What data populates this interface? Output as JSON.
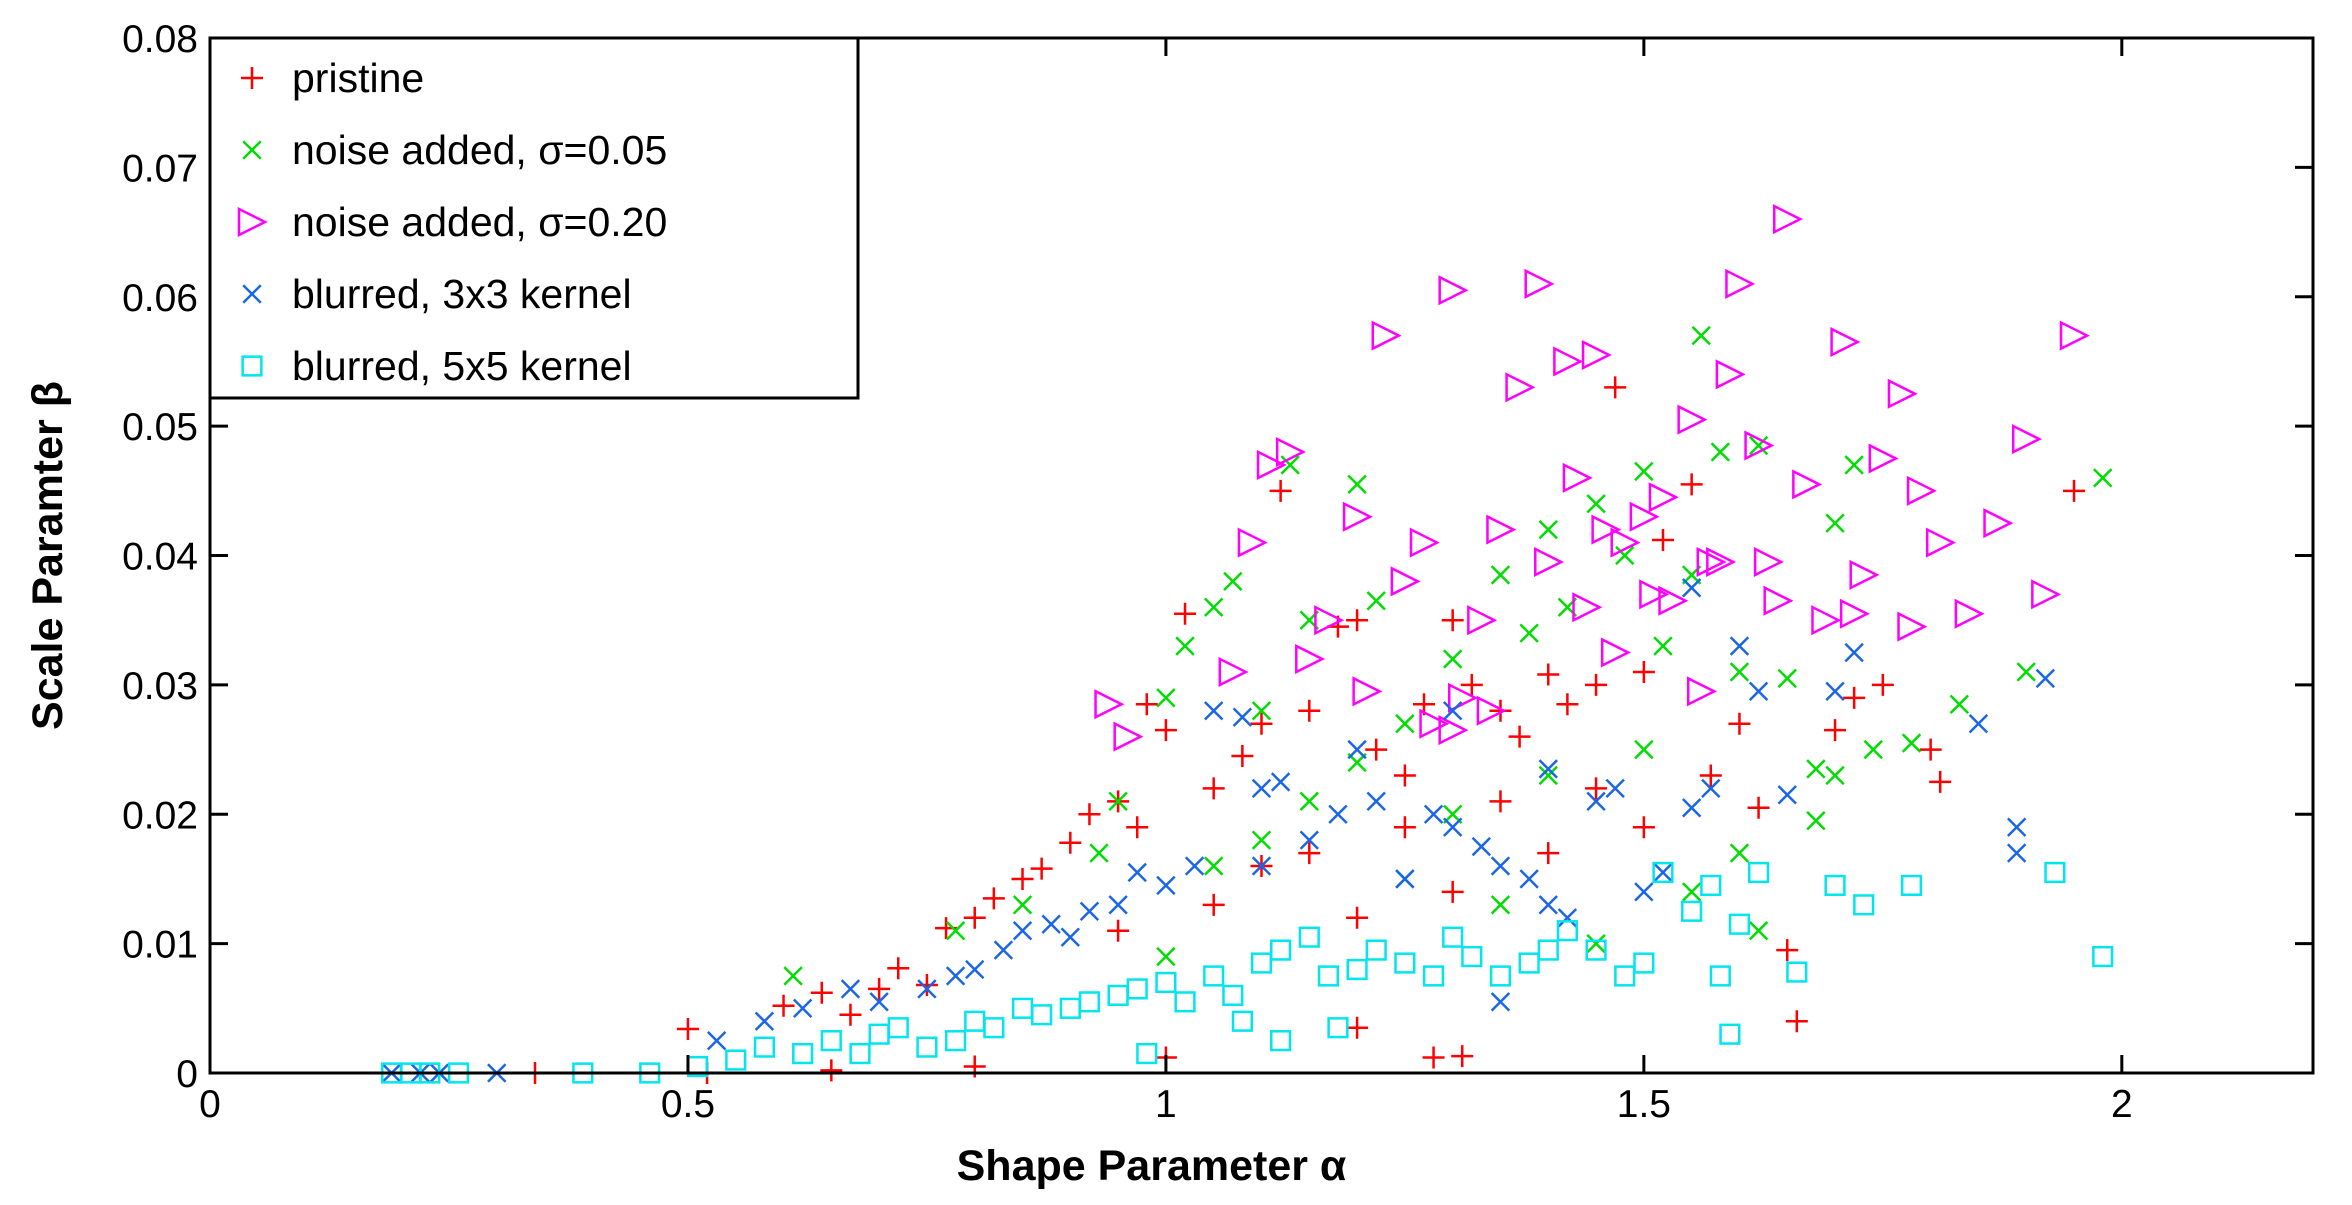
{
  "chart_data": {
    "type": "scatter",
    "title": "",
    "xlabel": "Shape Parameter α",
    "ylabel": "Scale Paramter β",
    "xlim": [
      0,
      2.2
    ],
    "ylim": [
      0,
      0.08
    ],
    "xticks": [
      0,
      0.5,
      1,
      1.5,
      2
    ],
    "xtick_labels": [
      "0",
      "0.5",
      "1",
      "1.5",
      "2"
    ],
    "yticks": [
      0,
      0.01,
      0.02,
      0.03,
      0.04,
      0.05,
      0.06,
      0.07,
      0.08
    ],
    "ytick_labels": [
      "0",
      "0.01",
      "0.02",
      "0.03",
      "0.04",
      "0.05",
      "0.06",
      "0.07",
      "0.08"
    ],
    "grid": false,
    "legend_position": "top-left",
    "series": [
      {
        "name": "pristine",
        "marker": "plus",
        "color": "#ff0000",
        "points": [
          [
            0.34,
            0.0
          ],
          [
            0.5,
            0.0034
          ],
          [
            0.52,
            0.0
          ],
          [
            0.6,
            0.0052
          ],
          [
            0.64,
            0.0062
          ],
          [
            0.67,
            0.0045
          ],
          [
            0.7,
            0.0065
          ],
          [
            0.72,
            0.0081
          ],
          [
            0.75,
            0.0068
          ],
          [
            0.77,
            0.0112
          ],
          [
            0.8,
            0.012
          ],
          [
            0.82,
            0.0135
          ],
          [
            0.85,
            0.015
          ],
          [
            0.87,
            0.0158
          ],
          [
            0.9,
            0.0178
          ],
          [
            0.92,
            0.02
          ],
          [
            0.95,
            0.021
          ],
          [
            0.97,
            0.019
          ],
          [
            0.98,
            0.0285
          ],
          [
            1.0,
            0.0265
          ],
          [
            1.02,
            0.0355
          ],
          [
            1.05,
            0.022
          ],
          [
            1.08,
            0.0245
          ],
          [
            1.1,
            0.027
          ],
          [
            1.12,
            0.045
          ],
          [
            1.15,
            0.028
          ],
          [
            1.18,
            0.0345
          ],
          [
            1.2,
            0.035
          ],
          [
            1.22,
            0.025
          ],
          [
            1.25,
            0.023
          ],
          [
            1.27,
            0.0285
          ],
          [
            1.3,
            0.035
          ],
          [
            1.32,
            0.03
          ],
          [
            1.35,
            0.028
          ],
          [
            1.37,
            0.026
          ],
          [
            1.4,
            0.0308
          ],
          [
            1.42,
            0.0285
          ],
          [
            1.45,
            0.03
          ],
          [
            1.47,
            0.053
          ],
          [
            1.5,
            0.031
          ],
          [
            1.52,
            0.0412
          ],
          [
            1.55,
            0.0455
          ],
          [
            1.57,
            0.023
          ],
          [
            1.6,
            0.027
          ],
          [
            1.62,
            0.0205
          ],
          [
            1.65,
            0.0095
          ],
          [
            1.66,
            0.004
          ],
          [
            1.7,
            0.0265
          ],
          [
            1.72,
            0.029
          ],
          [
            1.75,
            0.03
          ],
          [
            1.8,
            0.025
          ],
          [
            1.81,
            0.0225
          ],
          [
            1.95,
            0.045
          ],
          [
            1.2,
            0.0035
          ],
          [
            1.28,
            0.0012
          ],
          [
            1.31,
            0.0013
          ],
          [
            1.0,
            0.0012
          ],
          [
            0.8,
            0.0005
          ],
          [
            0.65,
            0.0002
          ],
          [
            1.1,
            0.016
          ],
          [
            1.15,
            0.017
          ],
          [
            1.25,
            0.019
          ],
          [
            1.35,
            0.021
          ],
          [
            1.45,
            0.022
          ],
          [
            1.4,
            0.017
          ],
          [
            1.3,
            0.014
          ],
          [
            1.2,
            0.012
          ],
          [
            1.05,
            0.013
          ],
          [
            0.95,
            0.011
          ],
          [
            1.5,
            0.019
          ]
        ]
      },
      {
        "name": "noise added, σ=0.05",
        "marker": "x",
        "color": "#00dd00",
        "points": [
          [
            0.61,
            0.0075
          ],
          [
            0.78,
            0.011
          ],
          [
            0.85,
            0.013
          ],
          [
            0.93,
            0.017
          ],
          [
            0.95,
            0.021
          ],
          [
            1.0,
            0.029
          ],
          [
            1.02,
            0.033
          ],
          [
            1.05,
            0.036
          ],
          [
            1.07,
            0.038
          ],
          [
            1.1,
            0.028
          ],
          [
            1.13,
            0.047
          ],
          [
            1.15,
            0.035
          ],
          [
            1.2,
            0.0455
          ],
          [
            1.22,
            0.0365
          ],
          [
            1.25,
            0.027
          ],
          [
            1.3,
            0.032
          ],
          [
            1.35,
            0.0385
          ],
          [
            1.38,
            0.034
          ],
          [
            1.4,
            0.042
          ],
          [
            1.42,
            0.036
          ],
          [
            1.45,
            0.044
          ],
          [
            1.48,
            0.04
          ],
          [
            1.5,
            0.0465
          ],
          [
            1.52,
            0.033
          ],
          [
            1.55,
            0.0385
          ],
          [
            1.56,
            0.057
          ],
          [
            1.58,
            0.048
          ],
          [
            1.6,
            0.031
          ],
          [
            1.62,
            0.0485
          ],
          [
            1.65,
            0.0305
          ],
          [
            1.68,
            0.0235
          ],
          [
            1.7,
            0.0425
          ],
          [
            1.72,
            0.047
          ],
          [
            1.74,
            0.025
          ],
          [
            1.78,
            0.0255
          ],
          [
            1.83,
            0.0285
          ],
          [
            1.9,
            0.031
          ],
          [
            1.98,
            0.046
          ],
          [
            1.15,
            0.021
          ],
          [
            1.25,
            0.015
          ],
          [
            1.35,
            0.013
          ],
          [
            1.45,
            0.01
          ],
          [
            1.55,
            0.014
          ],
          [
            1.62,
            0.011
          ],
          [
            1.0,
            0.009
          ],
          [
            1.1,
            0.018
          ],
          [
            1.3,
            0.02
          ],
          [
            1.4,
            0.023
          ],
          [
            1.5,
            0.025
          ],
          [
            1.2,
            0.024
          ],
          [
            1.05,
            0.016
          ],
          [
            1.6,
            0.017
          ],
          [
            1.68,
            0.0195
          ],
          [
            1.7,
            0.023
          ]
        ]
      },
      {
        "name": "noise added, σ=0.20",
        "marker": "triangle-right",
        "color": "#ff00ff",
        "points": [
          [
            0.94,
            0.0285
          ],
          [
            0.96,
            0.026
          ],
          [
            1.07,
            0.031
          ],
          [
            1.09,
            0.041
          ],
          [
            1.11,
            0.047
          ],
          [
            1.13,
            0.048
          ],
          [
            1.15,
            0.032
          ],
          [
            1.17,
            0.035
          ],
          [
            1.2,
            0.043
          ],
          [
            1.21,
            0.0295
          ],
          [
            1.23,
            0.057
          ],
          [
            1.25,
            0.038
          ],
          [
            1.27,
            0.041
          ],
          [
            1.3,
            0.0605
          ],
          [
            1.31,
            0.029
          ],
          [
            1.33,
            0.035
          ],
          [
            1.35,
            0.042
          ],
          [
            1.37,
            0.053
          ],
          [
            1.39,
            0.061
          ],
          [
            1.4,
            0.0395
          ],
          [
            1.42,
            0.055
          ],
          [
            1.43,
            0.046
          ],
          [
            1.45,
            0.0555
          ],
          [
            1.47,
            0.0325
          ],
          [
            1.48,
            0.041
          ],
          [
            1.5,
            0.043
          ],
          [
            1.51,
            0.037
          ],
          [
            1.53,
            0.0365
          ],
          [
            1.55,
            0.0505
          ],
          [
            1.57,
            0.0395
          ],
          [
            1.59,
            0.054
          ],
          [
            1.6,
            0.061
          ],
          [
            1.62,
            0.0485
          ],
          [
            1.63,
            0.0395
          ],
          [
            1.65,
            0.066
          ],
          [
            1.67,
            0.0455
          ],
          [
            1.69,
            0.035
          ],
          [
            1.71,
            0.0565
          ],
          [
            1.73,
            0.0385
          ],
          [
            1.75,
            0.0475
          ],
          [
            1.77,
            0.0525
          ],
          [
            1.79,
            0.045
          ],
          [
            1.81,
            0.041
          ],
          [
            1.84,
            0.0355
          ],
          [
            1.87,
            0.0425
          ],
          [
            1.9,
            0.049
          ],
          [
            1.92,
            0.037
          ],
          [
            1.95,
            0.057
          ],
          [
            1.28,
            0.027
          ],
          [
            1.34,
            0.028
          ],
          [
            1.44,
            0.036
          ],
          [
            1.52,
            0.0445
          ],
          [
            1.58,
            0.0395
          ],
          [
            1.64,
            0.0365
          ],
          [
            1.72,
            0.0355
          ],
          [
            1.78,
            0.0345
          ],
          [
            1.3,
            0.0265
          ],
          [
            1.46,
            0.042
          ],
          [
            1.56,
            0.0295
          ]
        ]
      },
      {
        "name": "blurred, 3x3 kernel",
        "marker": "x",
        "color": "#1a66e6",
        "points": [
          [
            0.19,
            0.0
          ],
          [
            0.22,
            0.0
          ],
          [
            0.24,
            0.0
          ],
          [
            0.3,
            0.0
          ],
          [
            0.53,
            0.0025
          ],
          [
            0.58,
            0.004
          ],
          [
            0.62,
            0.005
          ],
          [
            0.67,
            0.0065
          ],
          [
            0.7,
            0.0055
          ],
          [
            0.75,
            0.0065
          ],
          [
            0.78,
            0.0075
          ],
          [
            0.8,
            0.008
          ],
          [
            0.83,
            0.0095
          ],
          [
            0.85,
            0.011
          ],
          [
            0.88,
            0.0115
          ],
          [
            0.9,
            0.0105
          ],
          [
            0.92,
            0.0125
          ],
          [
            0.95,
            0.013
          ],
          [
            0.97,
            0.0155
          ],
          [
            1.0,
            0.0145
          ],
          [
            1.03,
            0.016
          ],
          [
            1.05,
            0.028
          ],
          [
            1.08,
            0.0275
          ],
          [
            1.1,
            0.022
          ],
          [
            1.12,
            0.0225
          ],
          [
            1.15,
            0.018
          ],
          [
            1.18,
            0.02
          ],
          [
            1.2,
            0.025
          ],
          [
            1.22,
            0.021
          ],
          [
            1.25,
            0.015
          ],
          [
            1.28,
            0.02
          ],
          [
            1.3,
            0.019
          ],
          [
            1.33,
            0.0175
          ],
          [
            1.35,
            0.016
          ],
          [
            1.38,
            0.015
          ],
          [
            1.4,
            0.013
          ],
          [
            1.42,
            0.012
          ],
          [
            1.45,
            0.021
          ],
          [
            1.47,
            0.022
          ],
          [
            1.5,
            0.014
          ],
          [
            1.52,
            0.0155
          ],
          [
            1.55,
            0.0205
          ],
          [
            1.57,
            0.022
          ],
          [
            1.6,
            0.033
          ],
          [
            1.62,
            0.0295
          ],
          [
            1.65,
            0.0215
          ],
          [
            1.7,
            0.0295
          ],
          [
            1.72,
            0.0325
          ],
          [
            1.85,
            0.027
          ],
          [
            1.89,
            0.019
          ],
          [
            1.89,
            0.017
          ],
          [
            1.92,
            0.0305
          ],
          [
            1.55,
            0.0375
          ],
          [
            1.4,
            0.0235
          ],
          [
            1.3,
            0.028
          ],
          [
            1.35,
            0.0055
          ],
          [
            1.1,
            0.016
          ]
        ]
      },
      {
        "name": "blurred, 5x5 kernel",
        "marker": "square",
        "color": "#00e5ee",
        "points": [
          [
            0.19,
            0.0
          ],
          [
            0.21,
            0.0
          ],
          [
            0.23,
            0.0
          ],
          [
            0.26,
            0.0
          ],
          [
            0.39,
            0.0
          ],
          [
            0.46,
            0.0
          ],
          [
            0.51,
            0.0005
          ],
          [
            0.55,
            0.001
          ],
          [
            0.58,
            0.002
          ],
          [
            0.62,
            0.0015
          ],
          [
            0.65,
            0.0025
          ],
          [
            0.68,
            0.0015
          ],
          [
            0.7,
            0.003
          ],
          [
            0.72,
            0.0035
          ],
          [
            0.75,
            0.002
          ],
          [
            0.78,
            0.0025
          ],
          [
            0.8,
            0.004
          ],
          [
            0.82,
            0.0035
          ],
          [
            0.85,
            0.005
          ],
          [
            0.87,
            0.0045
          ],
          [
            0.9,
            0.005
          ],
          [
            0.92,
            0.0055
          ],
          [
            0.95,
            0.006
          ],
          [
            0.97,
            0.0065
          ],
          [
            1.0,
            0.007
          ],
          [
            1.02,
            0.0055
          ],
          [
            1.05,
            0.0075
          ],
          [
            1.07,
            0.006
          ],
          [
            1.1,
            0.0085
          ],
          [
            1.12,
            0.0095
          ],
          [
            1.15,
            0.0105
          ],
          [
            1.17,
            0.0075
          ],
          [
            1.2,
            0.008
          ],
          [
            1.22,
            0.0095
          ],
          [
            1.25,
            0.0085
          ],
          [
            1.28,
            0.0075
          ],
          [
            1.3,
            0.0105
          ],
          [
            1.32,
            0.009
          ],
          [
            1.35,
            0.0075
          ],
          [
            1.38,
            0.0085
          ],
          [
            1.4,
            0.0095
          ],
          [
            1.42,
            0.011
          ],
          [
            1.45,
            0.0095
          ],
          [
            1.48,
            0.0075
          ],
          [
            1.5,
            0.0085
          ],
          [
            1.52,
            0.0155
          ],
          [
            1.55,
            0.0125
          ],
          [
            1.57,
            0.0145
          ],
          [
            1.58,
            0.0075
          ],
          [
            1.59,
            0.003
          ],
          [
            1.6,
            0.0115
          ],
          [
            1.62,
            0.0155
          ],
          [
            1.66,
            0.0078
          ],
          [
            1.7,
            0.0145
          ],
          [
            1.73,
            0.013
          ],
          [
            1.78,
            0.0145
          ],
          [
            1.93,
            0.0155
          ],
          [
            1.98,
            0.009
          ],
          [
            1.12,
            0.0025
          ],
          [
            1.08,
            0.004
          ],
          [
            1.18,
            0.0035
          ],
          [
            0.98,
            0.0015
          ]
        ]
      }
    ]
  }
}
